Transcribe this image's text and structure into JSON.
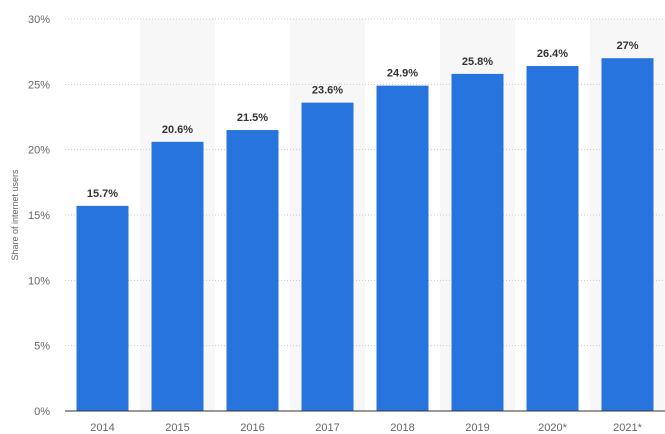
{
  "chart_data": {
    "type": "bar",
    "categories": [
      "2014",
      "2015",
      "2016",
      "2017",
      "2018",
      "2019",
      "2020*",
      "2021*"
    ],
    "values": [
      15.7,
      20.6,
      21.5,
      23.6,
      24.9,
      25.8,
      26.4,
      27
    ],
    "data_labels": [
      "15.7%",
      "20.6%",
      "21.5%",
      "23.6%",
      "24.9%",
      "25.8%",
      "26.4%",
      "27%"
    ],
    "title": "",
    "xlabel": "",
    "ylabel": "Share of internet users",
    "ylim": [
      0,
      30
    ],
    "y_ticks": [
      0,
      5,
      10,
      15,
      20,
      25,
      30
    ],
    "y_tick_labels": [
      "0%",
      "5%",
      "10%",
      "15%",
      "20%",
      "25%",
      "30%"
    ],
    "grid": true,
    "legend": "none",
    "colors": {
      "bar": "#2874de",
      "grid": "#c8c8c8",
      "axis": "#333333",
      "band": "#f7f7f7"
    }
  }
}
